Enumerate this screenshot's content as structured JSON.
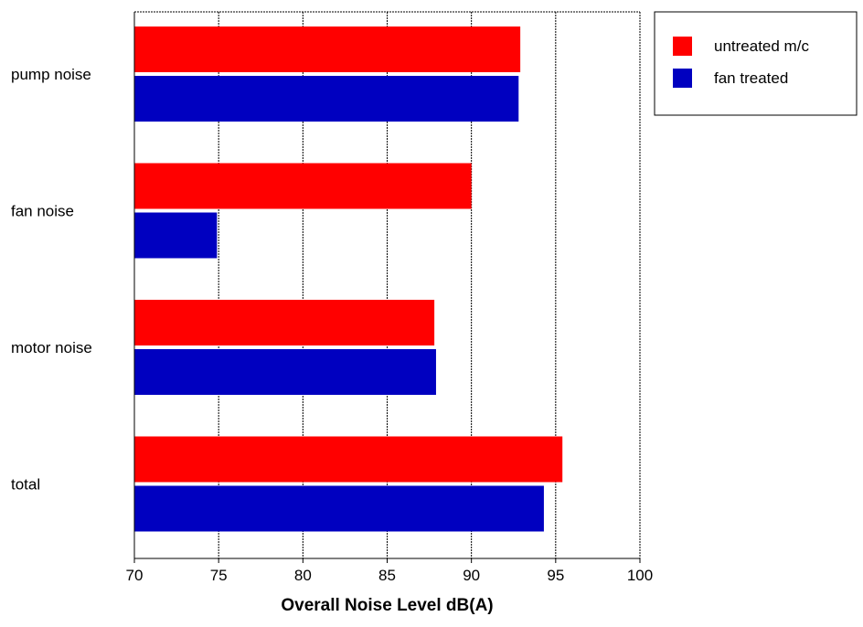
{
  "chart_data": {
    "type": "bar",
    "orientation": "horizontal",
    "title": "",
    "xlabel": "Overall Noise Level dB(A)",
    "ylabel": "",
    "xlim": [
      70,
      100
    ],
    "xticks": [
      70,
      75,
      80,
      85,
      90,
      95,
      100
    ],
    "xtick_labels": [
      "70",
      "75",
      "80",
      "85",
      "90",
      "95",
      "100"
    ],
    "grid": "vertical dashed gridlines at major ticks",
    "legend_position": "top-right, outside plot",
    "categories": [
      "pump noise",
      "fan noise",
      "motor noise",
      "total"
    ],
    "series": [
      {
        "name": "untreated m/c",
        "color": "#ff0000",
        "values": [
          92.9,
          90.0,
          87.8,
          95.4
        ]
      },
      {
        "name": "fan treated",
        "color": "#0000c0",
        "values": [
          92.8,
          74.9,
          87.9,
          94.3
        ]
      }
    ]
  }
}
